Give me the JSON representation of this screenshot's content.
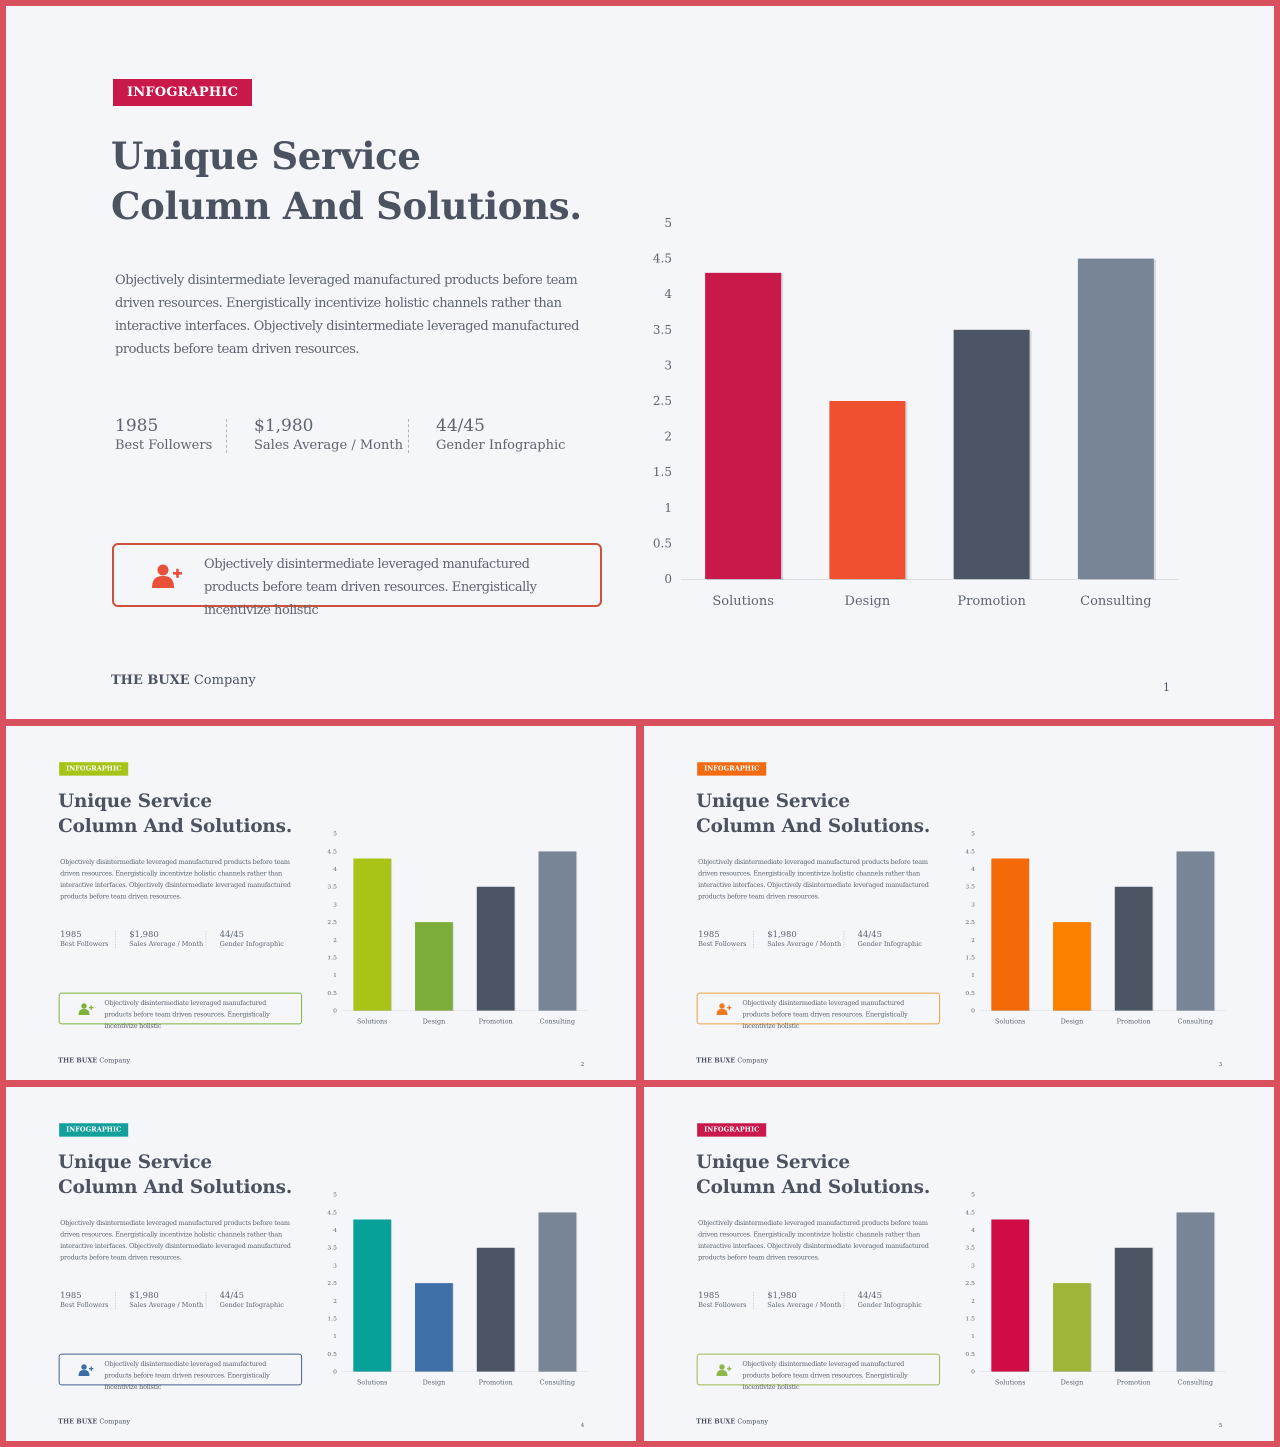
{
  "slides": [
    {
      "page": "1",
      "badge_color": "#c9184a",
      "accent": "#d0503e",
      "icon_color": "#e8503a",
      "bar_colors": [
        "#c9184a",
        "#ef5030",
        "#4b5563",
        "#788597"
      ]
    },
    {
      "page": "2",
      "badge_color": "#a6c318",
      "accent": "#7db33a",
      "icon_color": "#7db33a",
      "bar_colors": [
        "#a9c417",
        "#7cad39",
        "#4b5563",
        "#788597"
      ]
    },
    {
      "page": "3",
      "badge_color": "#f26a12",
      "accent": "#e8a040",
      "icon_color": "#f07a20",
      "bar_colors": [
        "#f56a08",
        "#fb8000",
        "#4b5563",
        "#788597"
      ]
    },
    {
      "page": "4",
      "badge_color": "#14a09a",
      "accent": "#46628a",
      "icon_color": "#3b6ea5",
      "bar_colors": [
        "#08a199",
        "#3f70a8",
        "#4b5563",
        "#788597"
      ]
    },
    {
      "page": "5",
      "badge_color": "#c9184a",
      "accent": "#9ab84a",
      "icon_color": "#8db848",
      "bar_colors": [
        "#cf0c46",
        "#9db63a",
        "#4b5563",
        "#788597"
      ]
    }
  ],
  "badge_label": "INFOGRAPHIC",
  "title_line1": "Unique Service",
  "title_line2": "Column And Solutions.",
  "description": "Objectively disintermediate leveraged manufactured products before team driven resources. Energistically incentivize holistic channels rather than interactive interfaces. Objectively disintermediate leveraged manufactured products before team driven resources.",
  "stats": [
    {
      "value": "1985",
      "label": "Best Followers"
    },
    {
      "value": "$1,980",
      "label": "Sales Average / Month"
    },
    {
      "value": "44/45",
      "label": "Gender Infographic"
    }
  ],
  "callout_text": "Objectively disintermediate leveraged manufactured products before team driven resources. Energistically incentivize holistic",
  "icon": "add-user-icon",
  "footer": {
    "brand": "THE BUXE",
    "suffix": "Company"
  },
  "chart_data": {
    "type": "bar",
    "categories": [
      "Solutions",
      "Design",
      "Promotion",
      "Consulting"
    ],
    "values": [
      4.3,
      2.5,
      3.5,
      4.5
    ],
    "ylim": [
      0,
      5
    ],
    "yticks": [
      "0",
      "0.5",
      "1",
      "1.5",
      "2",
      "2.5",
      "3",
      "3.5",
      "4",
      "4.5",
      "5"
    ],
    "grid": false,
    "legend": "none"
  }
}
